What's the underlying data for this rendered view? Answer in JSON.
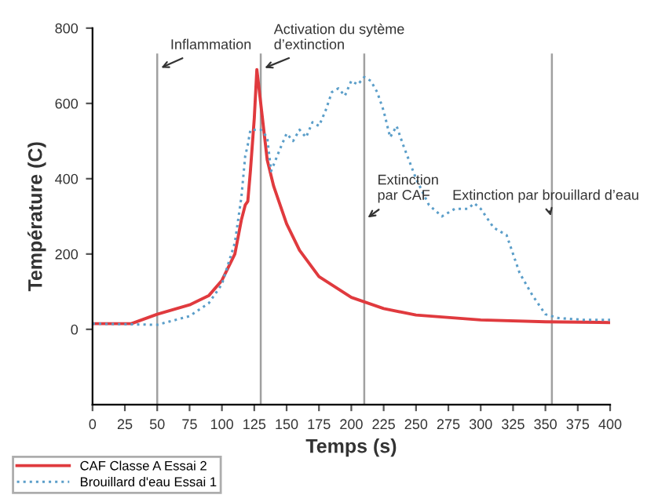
{
  "chart_data": {
    "type": "line",
    "xlabel": "Temps (s)",
    "ylabel": "Température (C)",
    "xlim": [
      0,
      400
    ],
    "ylim": [
      -200,
      800
    ],
    "xticks": [
      0,
      25,
      50,
      75,
      100,
      125,
      150,
      175,
      200,
      225,
      250,
      275,
      300,
      325,
      350,
      375,
      400
    ],
    "yticks": [
      0,
      200,
      400,
      600,
      800
    ],
    "grid": false,
    "legend": "bottom left",
    "series": [
      {
        "name": "CAF Classe A Essai 2",
        "color": "#e03a3e",
        "line_style": "solid",
        "x": [
          0,
          30,
          50,
          75,
          90,
          100,
          110,
          115,
          118,
          120,
          122,
          125,
          127,
          130,
          135,
          140,
          150,
          160,
          175,
          200,
          225,
          250,
          300,
          350,
          400
        ],
        "values": [
          15,
          15,
          40,
          65,
          90,
          130,
          200,
          290,
          330,
          340,
          420,
          560,
          690,
          600,
          450,
          380,
          280,
          210,
          140,
          85,
          55,
          38,
          25,
          20,
          18
        ]
      },
      {
        "name": "Brouillard d'eau Essai 1",
        "color": "#5b9ec9",
        "line_style": "dotted",
        "x": [
          0,
          50,
          75,
          90,
          100,
          110,
          115,
          118,
          120,
          122,
          130,
          135,
          138,
          145,
          150,
          155,
          160,
          165,
          170,
          175,
          180,
          185,
          190,
          195,
          200,
          205,
          210,
          215,
          220,
          225,
          230,
          235,
          240,
          250,
          260,
          270,
          280,
          290,
          295,
          300,
          310,
          320,
          325,
          330,
          340,
          350,
          360,
          380,
          400
        ],
        "values": [
          15,
          12,
          35,
          70,
          120,
          230,
          350,
          460,
          490,
          530,
          530,
          510,
          420,
          480,
          520,
          500,
          530,
          510,
          550,
          540,
          580,
          630,
          640,
          620,
          660,
          650,
          670,
          660,
          630,
          580,
          510,
          540,
          490,
          400,
          330,
          300,
          320,
          320,
          335,
          320,
          270,
          250,
          200,
          150,
          90,
          40,
          30,
          25,
          25
        ]
      }
    ],
    "ref_lines": [
      {
        "axis": "x",
        "value": 50,
        "color": "#a0a0a0"
      },
      {
        "axis": "x",
        "value": 130,
        "color": "#a0a0a0"
      },
      {
        "axis": "x",
        "value": 210,
        "color": "#a0a0a0"
      },
      {
        "axis": "x",
        "value": 355,
        "color": "#a0a0a0"
      }
    ],
    "annotations": [
      {
        "text": "Inflammation",
        "x": 50,
        "y": 720
      },
      {
        "text": "Activation du sytème\nd’extinction",
        "x": 130,
        "y": 720
      },
      {
        "text": "Extinction\npar CAF",
        "x": 210,
        "y": 320
      },
      {
        "text": "Extinction par brouillard d’eau",
        "x": 355,
        "y": 320
      }
    ]
  }
}
